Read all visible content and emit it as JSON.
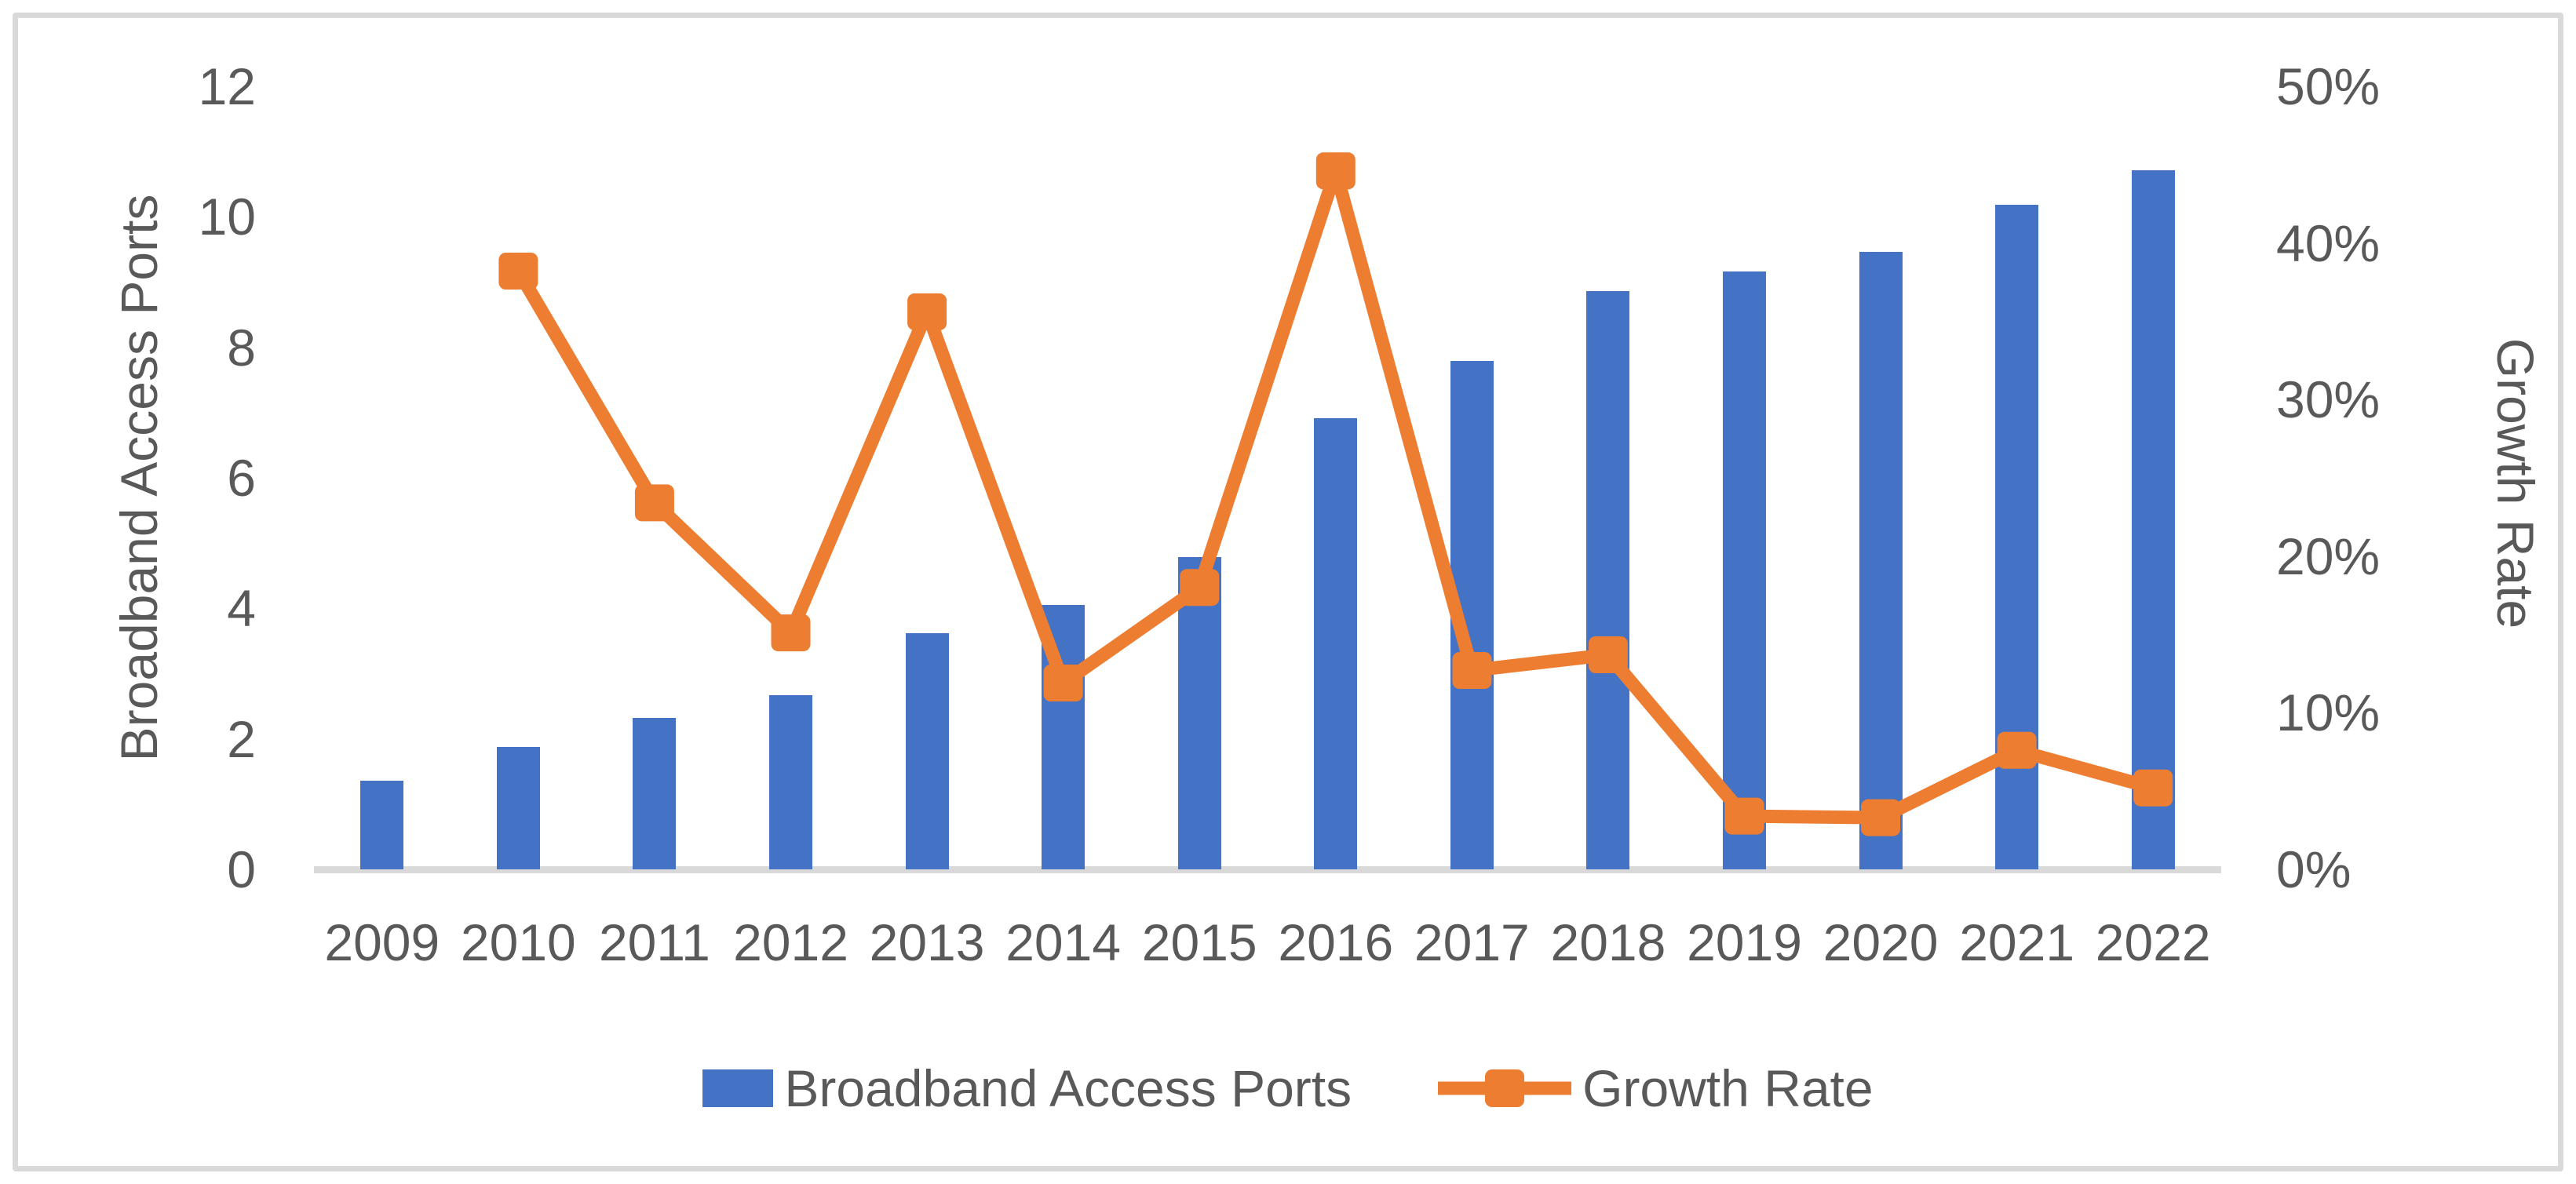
{
  "chart_data": {
    "type": "bar",
    "subtype": "combo-bar-line-dual-axis",
    "categories": [
      "2009",
      "2010",
      "2011",
      "2012",
      "2013",
      "2014",
      "2015",
      "2016",
      "2017",
      "2018",
      "2019",
      "2020",
      "2021",
      "2022"
    ],
    "series": [
      {
        "name": "Broadband Access Ports",
        "type": "bar",
        "axis": "left",
        "color": "#4472C4",
        "values": [
          1.36,
          1.88,
          2.32,
          2.67,
          3.62,
          4.05,
          4.78,
          6.91,
          7.79,
          8.86,
          9.16,
          9.46,
          10.18,
          10.71
        ]
      },
      {
        "name": "Growth Rate",
        "type": "line",
        "axis": "right",
        "color": "#ED7D31",
        "marker": "square",
        "values": [
          null,
          38.2,
          23.4,
          15.1,
          35.6,
          11.9,
          18.0,
          44.6,
          12.7,
          13.7,
          3.4,
          3.3,
          7.6,
          5.2
        ]
      }
    ],
    "left_axis": {
      "title": "Broadband Access Ports",
      "min": 0,
      "max": 12,
      "tick_step": 2,
      "tick_labels": [
        "12",
        "10",
        "8",
        "6",
        "4",
        "2",
        "0"
      ]
    },
    "right_axis": {
      "title": "Growth Rate",
      "min": 0,
      "max": 50,
      "tick_labels": [
        "50%",
        "40%",
        "30%",
        "20%",
        "10%",
        "0%"
      ]
    },
    "grid": false,
    "legend_position": "bottom-center",
    "legend": {
      "items": [
        {
          "label": "Broadband Access Ports",
          "marker": "bar-swatch"
        },
        {
          "label": "Growth Rate",
          "marker": "line-square-marker"
        }
      ]
    }
  },
  "colors": {
    "bar": "#4472C4",
    "line": "#ED7D31",
    "text": "#595959",
    "axis_line": "#D9D9D9",
    "frame_border": "#D9D9D9",
    "background": "#FFFFFF"
  }
}
